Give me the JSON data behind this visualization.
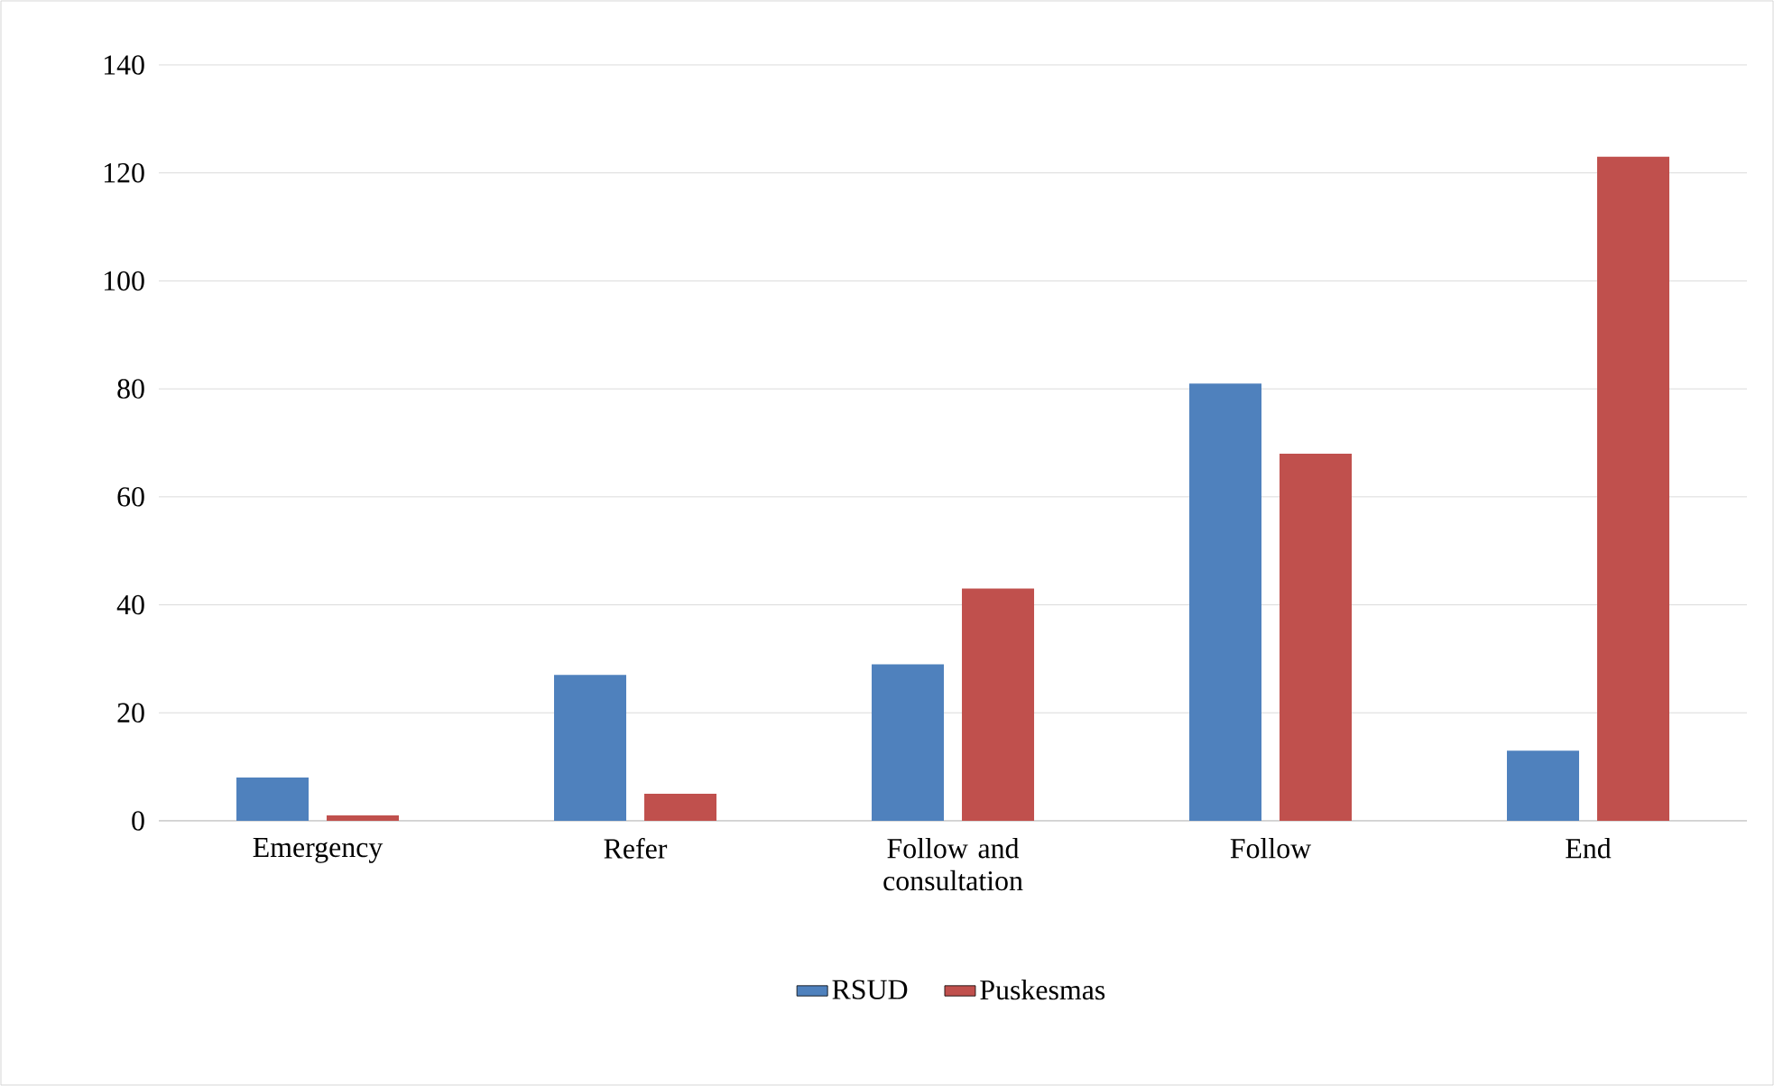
{
  "chart_data": {
    "type": "bar",
    "categories": [
      "Emergency",
      "Refer",
      "Follow and consultation",
      "Follow",
      "End"
    ],
    "series": [
      {
        "name": "RSUD",
        "color": "#4f81bd",
        "values": [
          8,
          27,
          29,
          81,
          13
        ]
      },
      {
        "name": "Puskesmas",
        "color": "#c0504d",
        "values": [
          1,
          5,
          43,
          68,
          123
        ]
      }
    ],
    "ylim": [
      0,
      140
    ],
    "yticks": [
      0,
      20,
      40,
      60,
      80,
      100,
      120,
      140
    ],
    "grid": "y",
    "legend": "bottom"
  }
}
